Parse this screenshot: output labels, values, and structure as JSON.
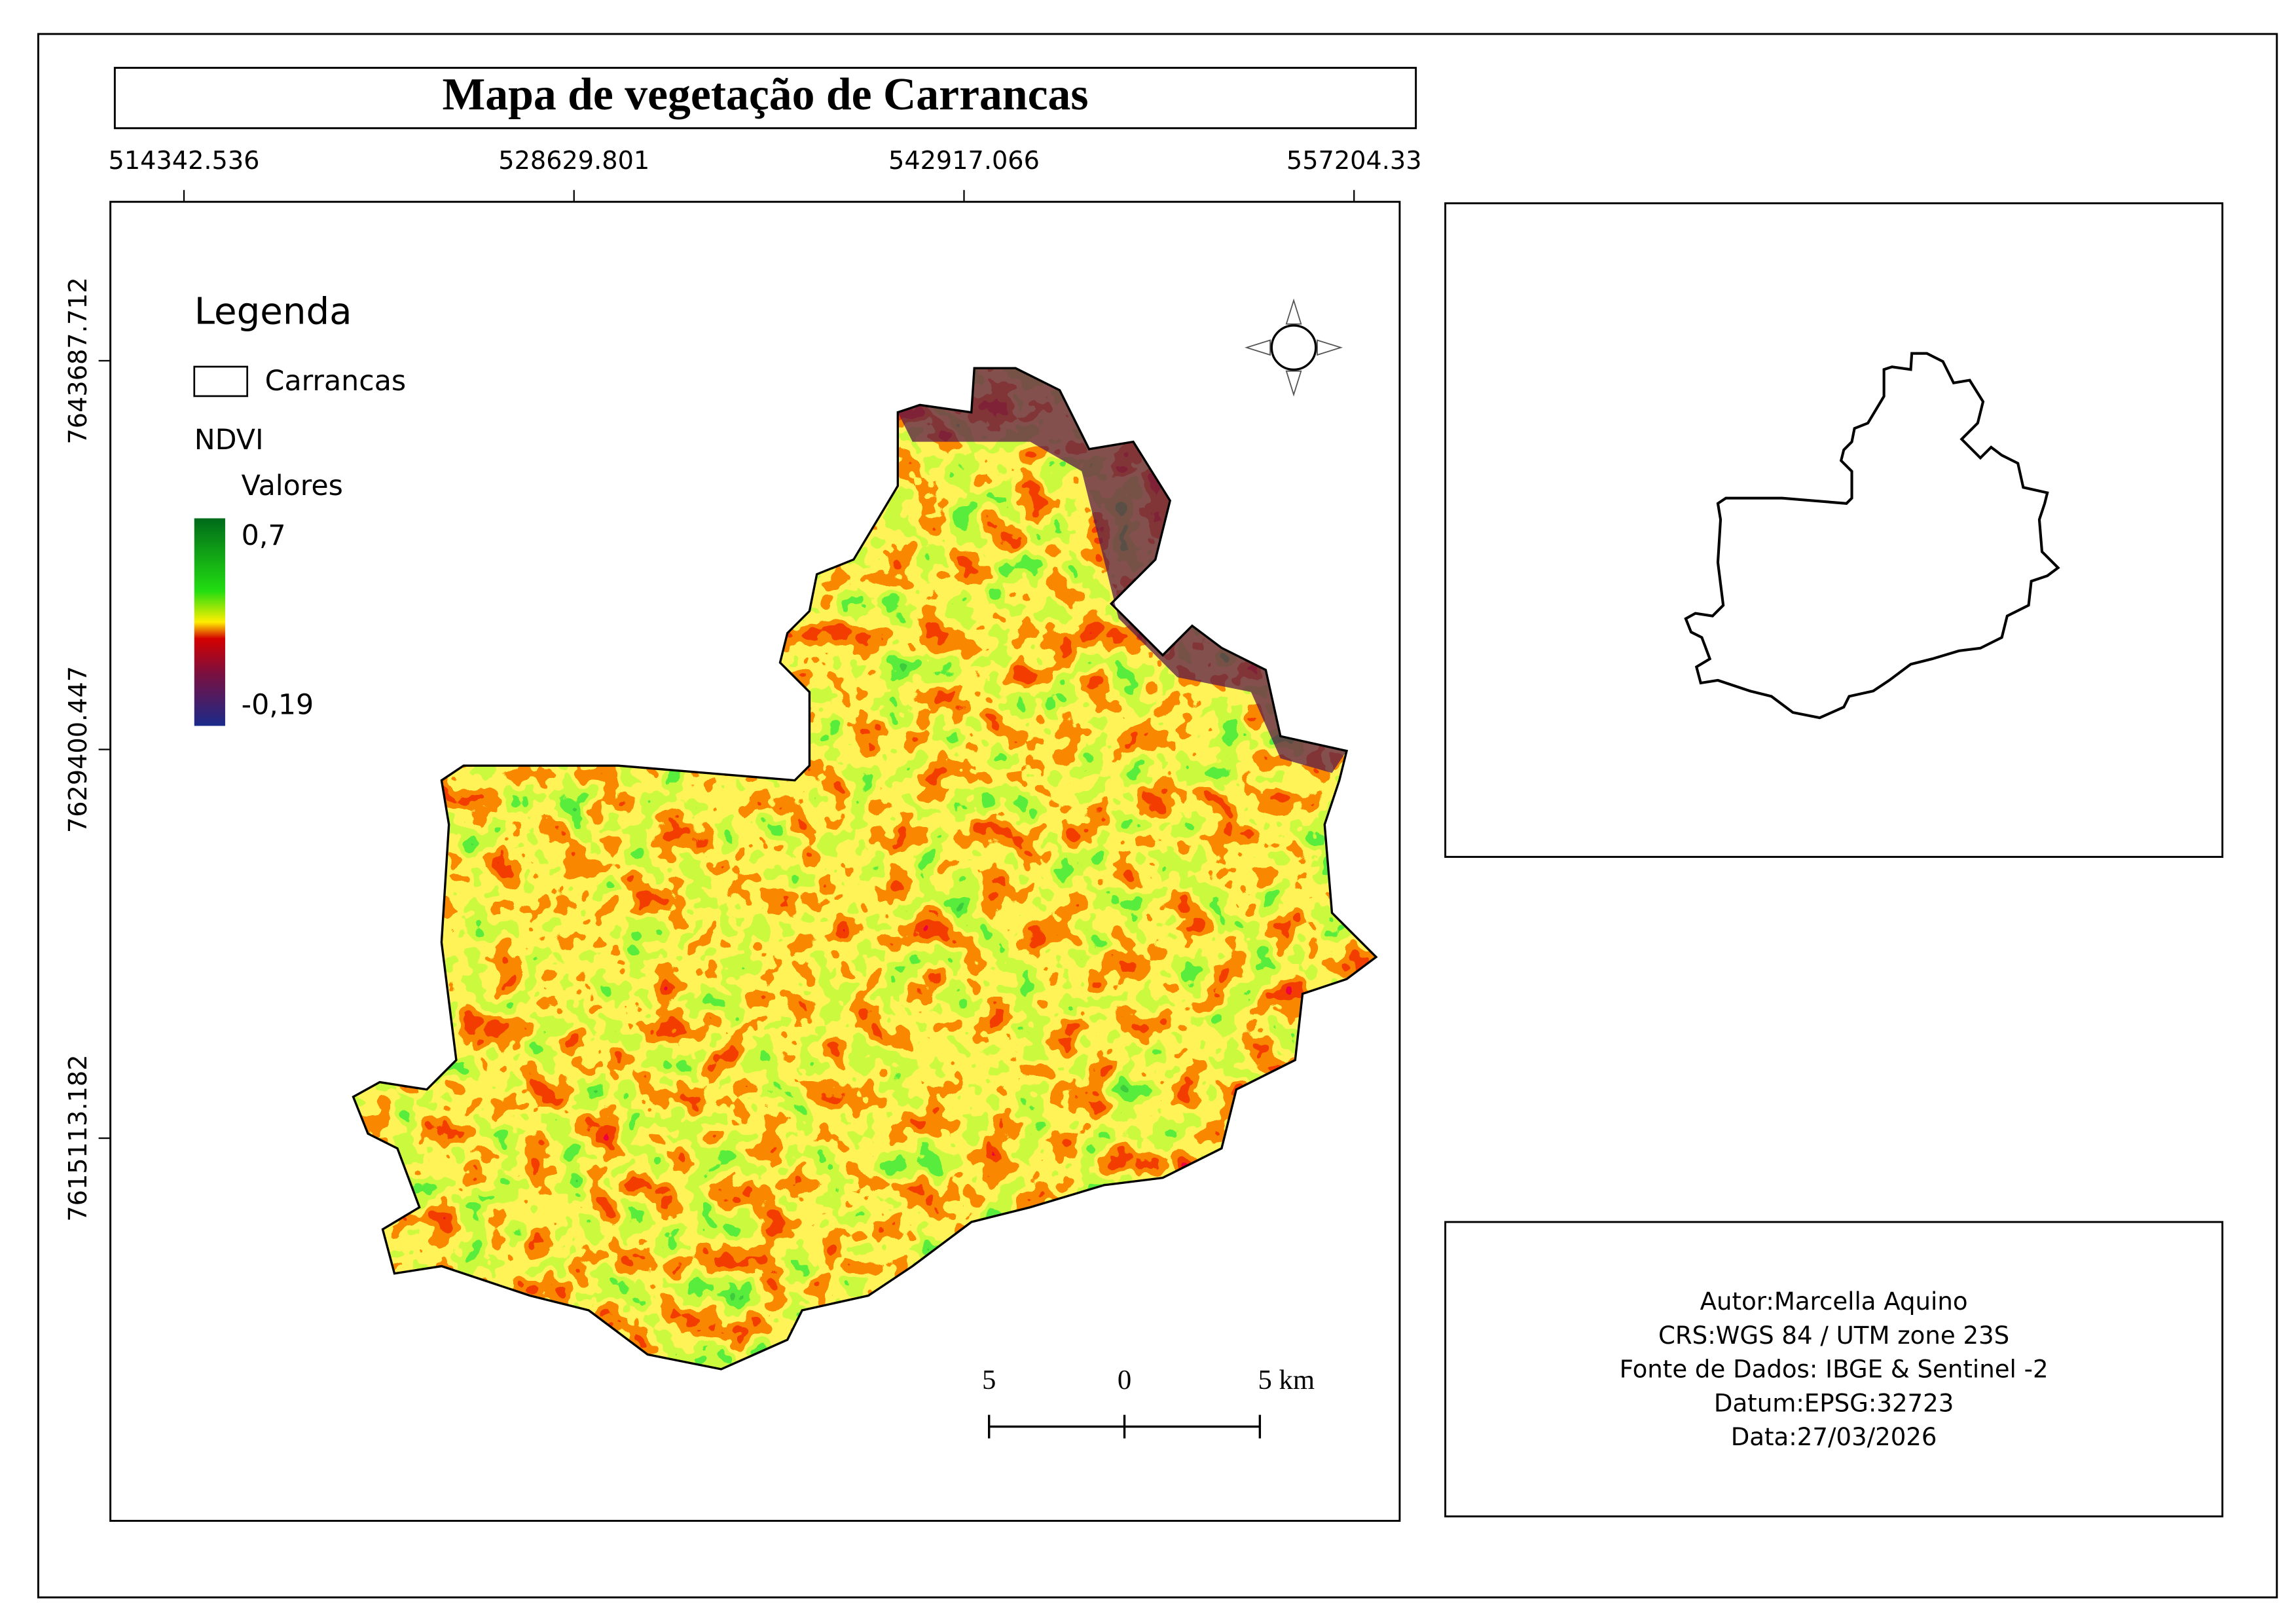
{
  "title": "Mapa de vegetação de Carrancas",
  "map": {
    "xlim": [
      511647,
      558876
    ],
    "xticks": [
      514342.536,
      528629.801,
      542917.066,
      557204.33
    ],
    "ylim": [
      7601047,
      7649531
    ],
    "yticks": [
      7643687.712,
      7629400.447,
      7615113.182
    ]
  },
  "legend": {
    "title": "Legenda",
    "layer": "Carrancas",
    "ndvi_title": "NDVI",
    "ndvi_subtitle": "Valores",
    "ndvi_range": [
      {
        "value": 0.7,
        "label": "0,7"
      },
      {
        "value": -0.19,
        "label": "-0,19"
      }
    ]
  },
  "scale_bar": {
    "labels": [
      "5",
      "0",
      "5 km"
    ]
  },
  "info": [
    "Autor:Marcella Aquino",
    "CRS:WGS 84 / UTM zone 23S",
    "Fonte de Dados: IBGE & Sentinel -2",
    "Datum:EPSG:32723",
    "Data:27/03/2026"
  ]
}
